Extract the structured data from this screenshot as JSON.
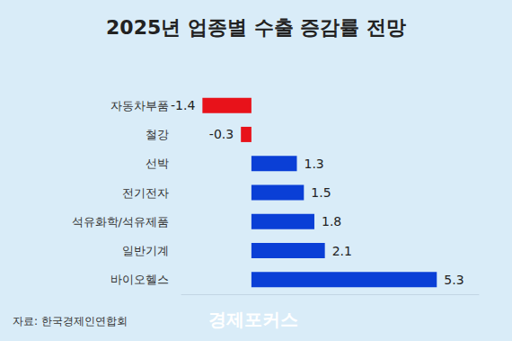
{
  "chart_data": {
    "type": "bar",
    "orientation": "horizontal",
    "title": "2025년 업종별 수출 증감률 전망",
    "categories": [
      "자동차부품",
      "철강",
      "선박",
      "전기전자",
      "석유화학/석유제품",
      "일반기계",
      "바이오헬스"
    ],
    "values": [
      -1.4,
      -0.3,
      1.3,
      1.5,
      1.8,
      2.1,
      5.3
    ],
    "colors": [
      "#e8121a",
      "#e8121a",
      "#0a3fd6",
      "#0a3fd6",
      "#0a3fd6",
      "#0a3fd6",
      "#0a3fd6"
    ],
    "xlim": [
      -2,
      6.5
    ],
    "data_labels": true,
    "tick_labels": "y",
    "grid": false,
    "source": "자료: 한국경제인연합회",
    "watermark": "경제포커스"
  }
}
